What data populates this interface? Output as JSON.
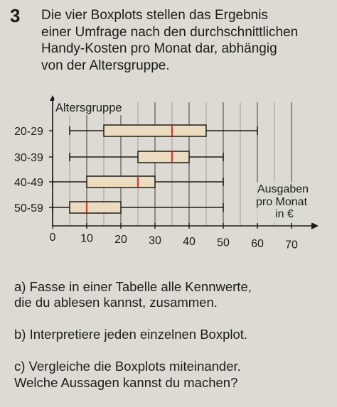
{
  "task": {
    "number": "3",
    "intro": "Die vier Boxplots stellen das Ergebnis\neiner Umfrage nach den durchschnittlichen\nHandy-Kosten pro Monat dar, abhängig\nvon der Altersgruppe.",
    "questions": [
      "a) Fasse in einer Tabelle alle Kennwerte,\ndie du ablesen kannst, zusammen.",
      "b) Interpretiere jeden einzelnen Boxplot.",
      "c) Vergleiche die Boxplots miteinander.\nWelche Aussagen kannst du machen?"
    ]
  },
  "colors": {
    "box_fill": "#ebdcc0",
    "median": "#d23a2a",
    "ink": "#1c1c1c"
  },
  "chart_data": {
    "type": "boxplot",
    "ylabel": "Altersgruppe",
    "xlabel_lines": [
      "Ausgaben",
      "pro Monat",
      "in €"
    ],
    "xlim": [
      0,
      70
    ],
    "xticks": [
      "0",
      "10",
      "20",
      "30",
      "40",
      "50",
      "60",
      "70"
    ],
    "grid": "vertical every 5",
    "categories": [
      "20-29",
      "30-39",
      "40-49",
      "50-59"
    ],
    "boxes": [
      {
        "label": "20-29",
        "min": 5,
        "q1": 15,
        "median": 35,
        "q3": 45,
        "max": 60
      },
      {
        "label": "30-39",
        "min": 5,
        "q1": 25,
        "median": 35,
        "q3": 40,
        "max": 50
      },
      {
        "label": "40-49",
        "min": 0,
        "q1": 10,
        "median": 25,
        "q3": 30,
        "max": 50
      },
      {
        "label": "50-59",
        "min": 0,
        "q1": 5,
        "median": 10,
        "q3": 20,
        "max": 50
      }
    ]
  }
}
